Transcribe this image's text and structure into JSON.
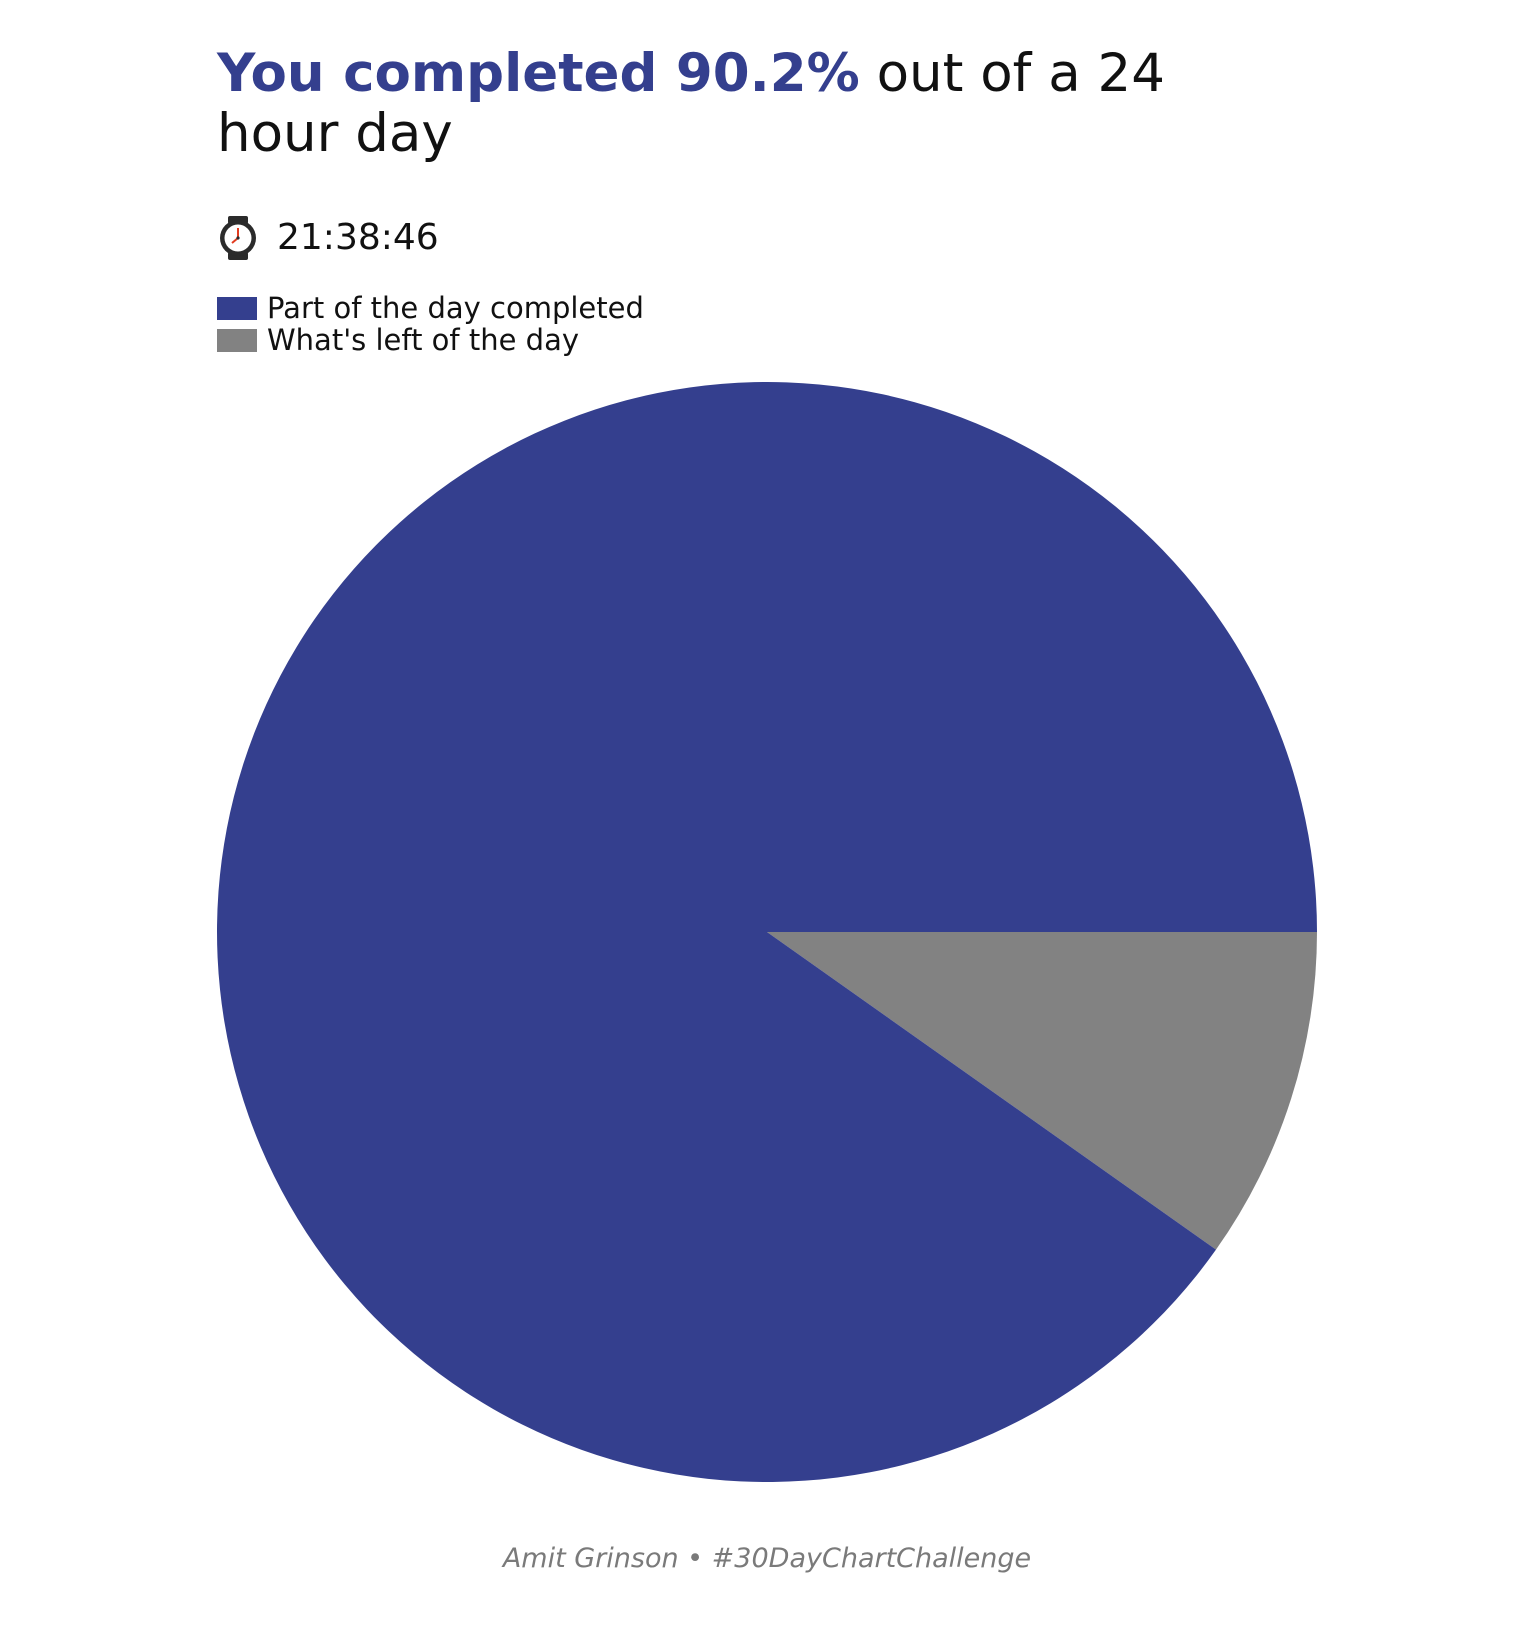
{
  "header": {
    "title_highlight": "You completed 90.2%",
    "title_rest": " out of a 24 hour day",
    "time": "21:38:46",
    "time_icon": "watch-icon"
  },
  "legend": [
    {
      "label": "Part of the day completed",
      "color": "#343f8e"
    },
    {
      "label": "What's left of the day",
      "color": "#828282"
    }
  ],
  "chart_data": {
    "type": "pie",
    "title": "You completed 90.2% out of a 24 hour day",
    "subtitle": "21:38:46",
    "slices": [
      {
        "label": "Part of the day completed",
        "value": 90.2,
        "color": "#343f8e"
      },
      {
        "label": "What's left of the day",
        "value": 9.8,
        "color": "#828282"
      }
    ],
    "start": "clockwise from 3 o'clock position, remaining slice below",
    "legend_position": "top-left"
  },
  "footer": {
    "credit": "Amit Grinson • #30DayChartChallenge"
  }
}
